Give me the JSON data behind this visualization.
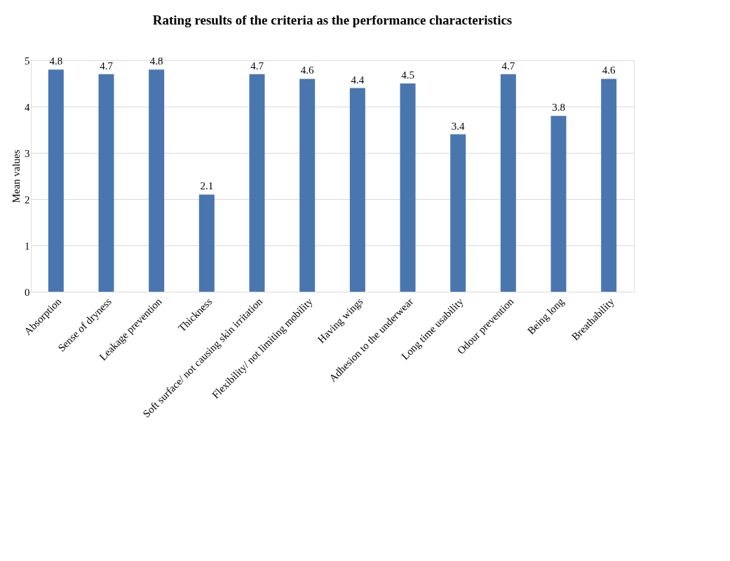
{
  "chart_data": {
    "type": "bar",
    "title": "Rating results of the criteria as the performance characteristics",
    "ylabel": "Mean values",
    "categories": [
      "Absorption",
      "Sense of dryness",
      "Leakage prevention",
      "Thickness",
      "Soft surface/ not causing skin irritation",
      "Flexibility/ not limiting mobility",
      "Having wings",
      "Adhesion to the underwear",
      "Long time usability",
      "Odour prevention",
      "Being long",
      "Breathability"
    ],
    "values": [
      4.8,
      4.7,
      4.8,
      2.1,
      4.7,
      4.6,
      4.4,
      4.5,
      3.4,
      4.7,
      3.8,
      4.6
    ],
    "color": "#4a76b0",
    "ylim": [
      0,
      5
    ],
    "yticks": [
      0,
      1,
      2,
      3,
      4,
      5
    ],
    "grid": "y",
    "data_labels": true
  }
}
